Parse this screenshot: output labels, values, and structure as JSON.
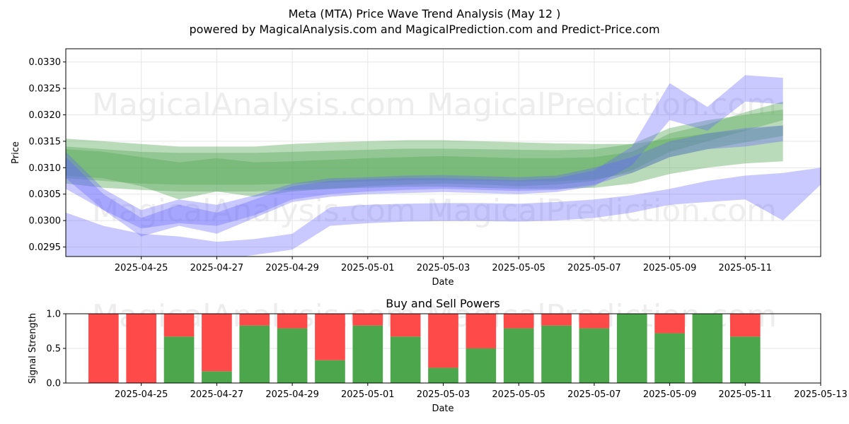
{
  "header": {
    "title": "Meta (MTA) Price Wave Trend Analysis (May 12 )",
    "subtitle": "powered by MagicalAnalysis.com and MagicalPrediction.com and Predict-Price.com"
  },
  "watermarks": [
    "MagicalAnalysis.com",
    "MagicalPrediction.com",
    "MagicalAnalysis.com",
    "MagicalPrediction.com",
    "MagicalAnalysis.com",
    "MagicalPrediction.com"
  ],
  "colors": {
    "buy": "#4ca64c",
    "sell": "#ff4a4a",
    "green_band": "#5aaa5a",
    "blue_band": "#6464ff"
  },
  "chart_data": [
    {
      "type": "area",
      "title": "",
      "xlabel": "Date",
      "ylabel": "Price",
      "ylim": [
        0.02932,
        0.03325
      ],
      "xlim": [
        "2025-04-23",
        "2025-05-13"
      ],
      "grid": true,
      "x_ticks": [
        "2025-04-25",
        "2025-04-27",
        "2025-04-29",
        "2025-05-01",
        "2025-05-03",
        "2025-05-05",
        "2025-05-07",
        "2025-05-09",
        "2025-05-11"
      ],
      "y_ticks": [
        "0.0295",
        "0.0300",
        "0.0305",
        "0.0310",
        "0.0315",
        "0.0320",
        "0.0325",
        "0.0330"
      ],
      "x": [
        "2025-04-23",
        "2025-04-24",
        "2025-04-25",
        "2025-04-26",
        "2025-04-27",
        "2025-04-28",
        "2025-04-29",
        "2025-04-30",
        "2025-05-01",
        "2025-05-02",
        "2025-05-03",
        "2025-05-04",
        "2025-05-05",
        "2025-05-06",
        "2025-05-07",
        "2025-05-08",
        "2025-05-09",
        "2025-05-10",
        "2025-05-11",
        "2025-05-12",
        "2025-05-13"
      ],
      "series": [
        {
          "color": "green",
          "upper": [
            0.03155,
            0.0315,
            0.03145,
            0.0314,
            0.0314,
            0.0314,
            0.03145,
            0.03148,
            0.0315,
            0.03152,
            0.03152,
            0.0315,
            0.03148,
            0.03146,
            0.03145,
            0.03145,
            0.03155,
            0.03165,
            0.03172,
            0.0318,
            null
          ],
          "lower": [
            0.0307,
            0.03062,
            0.03058,
            0.03055,
            0.03055,
            0.03055,
            0.03058,
            0.0306,
            0.03062,
            0.03064,
            0.03064,
            0.03062,
            0.0306,
            0.0306,
            0.03062,
            0.0307,
            0.03088,
            0.031,
            0.03108,
            0.03112,
            null
          ]
        },
        {
          "color": "green",
          "upper": [
            0.0314,
            0.03135,
            0.0313,
            0.03128,
            0.03128,
            0.03128,
            0.0313,
            0.03132,
            0.03134,
            0.03136,
            0.03136,
            0.03135,
            0.03134,
            0.03133,
            0.03135,
            0.03145,
            0.03175,
            0.0319,
            0.032,
            0.0321,
            null
          ],
          "lower": [
            0.0308,
            0.03075,
            0.0307,
            0.03068,
            0.03068,
            0.03068,
            0.0307,
            0.03072,
            0.03074,
            0.03076,
            0.03076,
            0.03075,
            0.03074,
            0.03074,
            0.03078,
            0.0309,
            0.0312,
            0.03135,
            0.03148,
            0.0316,
            null
          ]
        },
        {
          "color": "green",
          "upper": [
            0.03135,
            0.0313,
            0.0312,
            0.0311,
            0.03118,
            0.0311,
            0.03112,
            0.03115,
            0.03118,
            0.0312,
            0.03122,
            0.0312,
            0.03118,
            0.03118,
            0.0312,
            0.0313,
            0.03165,
            0.03182,
            0.03205,
            0.03225,
            null
          ],
          "lower": [
            0.03085,
            0.0308,
            0.03065,
            0.0304,
            0.03055,
            0.03045,
            0.03055,
            0.0306,
            0.03065,
            0.03068,
            0.0307,
            0.03068,
            0.03065,
            0.03068,
            0.03075,
            0.03095,
            0.0313,
            0.0315,
            0.0317,
            0.0319,
            null
          ]
        },
        {
          "color": "blue",
          "upper": [
            0.0313,
            0.0306,
            0.0302,
            0.0304,
            0.0303,
            0.03048,
            0.0307,
            0.0308,
            0.03082,
            0.03085,
            0.03086,
            0.03084,
            0.03082,
            0.03085,
            0.031,
            0.0312,
            0.0315,
            0.03165,
            0.03175,
            0.0318,
            null
          ],
          "lower": [
            0.0306,
            0.0302,
            0.02985,
            0.02995,
            0.0299,
            0.0301,
            0.0304,
            0.0305,
            0.03055,
            0.03058,
            0.0306,
            0.03058,
            0.03056,
            0.03058,
            0.03068,
            0.0309,
            0.0312,
            0.03135,
            0.0314,
            0.0315,
            null
          ]
        },
        {
          "color": "blue",
          "upper": [
            0.0312,
            0.0305,
            0.03005,
            0.0303,
            0.03015,
            0.0304,
            0.03065,
            0.03075,
            0.03078,
            0.0308,
            0.0308,
            0.03078,
            0.03076,
            0.0308,
            0.03095,
            0.0314,
            0.0326,
            0.03215,
            0.03275,
            0.0327,
            null
          ],
          "lower": [
            0.0308,
            0.0302,
            0.0297,
            0.0299,
            0.02975,
            0.03005,
            0.03035,
            0.03045,
            0.0305,
            0.03052,
            0.03054,
            0.03052,
            0.0305,
            0.03054,
            0.03065,
            0.03105,
            0.0319,
            0.0317,
            0.03225,
            0.0322,
            null
          ]
        },
        {
          "color": "blue",
          "upper": [
            0.03015,
            0.0299,
            0.02975,
            0.0297,
            0.0296,
            0.02965,
            0.02975,
            0.03025,
            0.0303,
            0.03032,
            0.03033,
            0.03033,
            0.03032,
            0.03035,
            0.0304,
            0.03048,
            0.0306,
            0.03075,
            0.03085,
            0.0309,
            0.031
          ],
          "lower": [
            0.02925,
            0.0292,
            0.02918,
            0.0292,
            0.02925,
            0.02935,
            0.02945,
            0.0299,
            0.02995,
            0.02998,
            0.02999,
            0.02999,
            0.02998,
            0.03,
            0.03005,
            0.03015,
            0.0303,
            0.03035,
            0.0304,
            0.03,
            0.03068
          ]
        }
      ]
    },
    {
      "type": "bar",
      "title": "Buy and Sell Powers",
      "xlabel": "Date",
      "ylabel": "Signal Strength",
      "ylim": [
        0,
        1
      ],
      "xlim": [
        "2025-04-23",
        "2025-05-13"
      ],
      "grid": true,
      "x_ticks": [
        "2025-04-25",
        "2025-04-27",
        "2025-04-29",
        "2025-05-01",
        "2025-05-03",
        "2025-05-05",
        "2025-05-07",
        "2025-05-09",
        "2025-05-11",
        "2025-05-13"
      ],
      "y_ticks": [
        "0.0",
        "0.5",
        "1.0"
      ],
      "categories": [
        "2025-04-24",
        "2025-04-25",
        "2025-04-26",
        "2025-04-27",
        "2025-04-28",
        "2025-04-29",
        "2025-04-30",
        "2025-05-01",
        "2025-05-02",
        "2025-05-03",
        "2025-05-04",
        "2025-05-05",
        "2025-05-06",
        "2025-05-07",
        "2025-05-08",
        "2025-05-09",
        "2025-05-10",
        "2025-05-11",
        "2025-05-12"
      ],
      "buy": [
        0.0,
        0.0,
        0.67,
        0.17,
        0.83,
        0.79,
        0.33,
        0.83,
        0.67,
        0.22,
        0.5,
        0.79,
        0.83,
        0.79,
        1.0,
        0.72,
        1.0,
        0.67,
        0.0
      ],
      "sell": [
        1.0,
        1.0,
        0.33,
        0.83,
        0.17,
        0.21,
        0.67,
        0.17,
        0.33,
        0.78,
        0.5,
        0.21,
        0.17,
        0.21,
        0.0,
        0.28,
        0.0,
        0.33,
        0.0
      ]
    }
  ]
}
